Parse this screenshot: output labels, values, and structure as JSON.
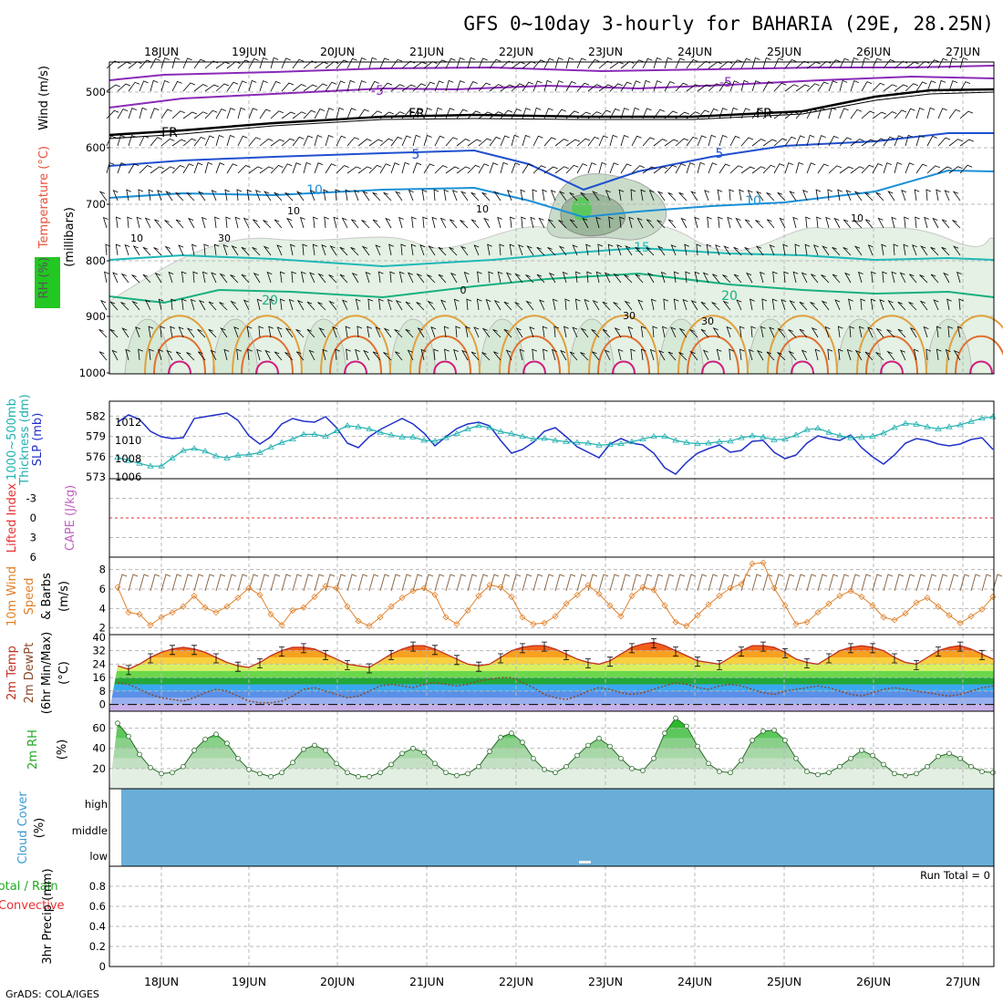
{
  "title": "GFS 0~10day 3-hourly for BAHARIA (29E, 28.25N)",
  "footer": "GrADS: COLA/IGES",
  "days": [
    "18JUN",
    "19JUN",
    "20JUN",
    "21JUN",
    "22JUN",
    "23JUN",
    "24JUN",
    "25JUN",
    "26JUN",
    "27JUN"
  ],
  "panels": {
    "upper": {
      "labels": [
        "Wind (m/s)",
        "Temperature (°C)",
        "RH (%)",
        "(millibars)"
      ],
      "label_colors": [
        "#000000",
        "#e8503a",
        "#22aa22",
        "#000000"
      ],
      "y_ticks": [
        "500",
        "600",
        "700",
        "800",
        "900",
        "1000"
      ]
    },
    "slp": {
      "labels": [
        "1000~500mb",
        "Thickness (dm)",
        "SLP (mb)"
      ],
      "label_colors": [
        "#20b0b0",
        "#20b0b0",
        "#2030c8"
      ],
      "left_ticks": [
        "582",
        "579",
        "576",
        "573"
      ],
      "right_ticks": [
        "1012",
        "1010",
        "1008",
        "1006"
      ]
    },
    "cape": {
      "labels": [
        "Lifted Index",
        "CAPE (J/kg)"
      ],
      "label_colors": [
        "#e83030",
        "#c060c0"
      ],
      "y_ticks": [
        "-3",
        "0",
        "3",
        "6"
      ]
    },
    "wind10m": {
      "labels": [
        "10m Wind",
        "Speed",
        "& Barbs",
        "(m/s)"
      ],
      "label_colors": [
        "#e0802a",
        "#e0802a",
        "#000000",
        "#000000"
      ],
      "y_ticks": [
        "8",
        "6",
        "4",
        "2"
      ]
    },
    "temp2m": {
      "labels": [
        "2m Temp",
        "2m DewPt",
        "(6hr Min/Max)",
        "(°C)"
      ],
      "label_colors": [
        "#c03020",
        "#8a4a2a",
        "#000000",
        "#000000"
      ],
      "y_ticks": [
        "40",
        "32",
        "24",
        "16",
        "8",
        "0"
      ]
    },
    "rh2m": {
      "labels": [
        "2m RH",
        "(%)"
      ],
      "label_colors": [
        "#22aa22",
        "#000000"
      ],
      "y_ticks": [
        "60",
        "40",
        "20"
      ]
    },
    "cloud": {
      "labels": [
        "Cloud Cover",
        "(%)"
      ],
      "label_colors": [
        "#3a9ad0",
        "#000000"
      ],
      "levels": [
        "high",
        "middle",
        "low"
      ],
      "fill_color": "#6aaed8"
    },
    "precip": {
      "labels": [
        "Total / Rain",
        "Convective",
        "3hr Precip (mm)"
      ],
      "label_colors": [
        "#22aa22",
        "#e83030",
        "#000000"
      ],
      "y_ticks": [
        "0.8",
        "0.6",
        "0.4",
        "0.2",
        "0"
      ],
      "run_total": "Run Total = 0"
    }
  },
  "contour_labels": {
    "temperature": [
      "-5",
      "-5",
      "FR",
      "FR",
      "FR",
      "5",
      "5",
      "10",
      "10",
      "15",
      "20",
      "20"
    ],
    "rh": [
      "10",
      "10",
      "10",
      "10",
      "30",
      "30",
      "30",
      "0"
    ]
  },
  "chart_data": [
    {
      "type": "line",
      "title": "SLP (mb) and 1000~500mb Thickness (dm)",
      "x": "3-hourly steps from 17JUN 12Z to 27JUN 06Z (80 steps)",
      "series": [
        {
          "name": "SLP (mb)",
          "color": "#2030c8",
          "values": [
            1010.5,
            1010.4,
            1011.5,
            1011.8,
            1012.0,
            1012.8,
            1012.3,
            1011.0,
            1010.4,
            1010.2,
            1010.3,
            1012.4,
            1012.6,
            1012.8,
            1013.0,
            1012.2,
            1010.5,
            1009.6,
            1010.4,
            1011.8,
            1012.4,
            1012.1,
            1012.0,
            1012.6,
            1011.4,
            1009.7,
            1009.2,
            1010.4,
            1011.2,
            1011.8,
            1012.4,
            1011.8,
            1010.8,
            1009.4,
            1010.4,
            1011.3,
            1011.8,
            1012.0,
            1011.6,
            1010.0,
            1008.6,
            1009.0,
            1009.8,
            1011.0,
            1011.4,
            1010.4,
            1009.3,
            1008.7,
            1008.1,
            1009.6,
            1010.2,
            1009.7,
            1009.5,
            1008.6,
            1007.0,
            1006.3,
            1007.6,
            1008.6,
            1009.1,
            1009.5,
            1008.7,
            1008.9,
            1009.9,
            1010.0,
            1008.7,
            1008.0,
            1008.4,
            1009.7,
            1010.5,
            1010.2,
            1010.0,
            1010.6,
            1009.2,
            1008.2,
            1007.4,
            1008.4,
            1009.7,
            1010.2,
            1010.0,
            1009.6,
            1009.4,
            1009.6,
            1010.1,
            1010.3,
            1009.0,
            1008.0,
            1007.8,
            1008.6,
            1009.6,
            1010.1,
            1010.2,
            1009.7,
            1009.8
          ]
        },
        {
          "name": "1000~500mb Thickness (dm)",
          "color": "#20b0b0",
          "values": [
            576.3,
            576.5,
            576.2,
            575.9,
            575.4,
            575.0,
            574.6,
            574.6,
            575.8,
            576.9,
            577.2,
            576.8,
            576.1,
            575.8,
            576.2,
            576.3,
            576.6,
            577.4,
            578.1,
            578.6,
            579.3,
            579.3,
            579.0,
            579.8,
            580.6,
            580.4,
            580.1,
            579.6,
            579.2,
            578.9,
            578.9,
            578.4,
            578.3,
            578.8,
            579.4,
            580.1,
            580.6,
            580.3,
            579.7,
            579.4,
            579.0,
            578.6,
            578.7,
            578.4,
            578.2,
            578.1,
            578.0,
            577.7,
            577.8,
            577.9,
            578.2,
            578.6,
            579.0,
            579.0,
            578.4,
            578.1,
            577.9,
            578.0,
            578.2,
            578.3,
            578.8,
            579.1,
            578.9,
            578.5,
            578.6,
            579.2,
            580.0,
            580.2,
            579.6,
            579.1,
            578.8,
            578.9,
            579.0,
            579.5,
            580.3,
            580.9,
            580.8,
            580.4,
            580.1,
            580.4,
            580.7,
            581.2,
            581.7,
            581.9,
            581.6,
            581.2,
            580.8,
            580.6,
            580.6,
            580.8,
            580.6,
            580.3
          ]
        }
      ],
      "ylim_left": [
        573,
        583
      ],
      "ylim_right": [
        1005.5,
        1013.5
      ],
      "grid": true
    },
    {
      "type": "line",
      "title": "10m Wind Speed (m/s)",
      "series": [
        {
          "name": "10m Wind Speed",
          "color": "#e0802a",
          "values": [
            6.8,
            7.4,
            6.2,
            3.6,
            3.4,
            2.3,
            3.1,
            3.6,
            4.2,
            5.3,
            4.1,
            3.6,
            4.2,
            5.1,
            6.1,
            5.4,
            3.4,
            2.3,
            3.8,
            4.1,
            5.2,
            6.3,
            6.1,
            4.2,
            2.7,
            2.2,
            3.1,
            4.2,
            5.1,
            5.8,
            6.1,
            5.4,
            3.1,
            2.4,
            3.8,
            5.3,
            6.4,
            6.2,
            5.2,
            3.1,
            2.4,
            2.5,
            3.2,
            4.5,
            5.4,
            6.4,
            5.5,
            4.3,
            3.2,
            5.3,
            6.2,
            5.9,
            4.3,
            2.6,
            2.2,
            3.3,
            4.4,
            5.3,
            6.1,
            6.5,
            8.6,
            8.7,
            6.1,
            4.3,
            2.4,
            2.6,
            3.6,
            4.5,
            5.3,
            5.8,
            5.2,
            4.3,
            3.1,
            2.8,
            3.5,
            4.6,
            5.1,
            4.2,
            3.3,
            2.5,
            3.2,
            3.9,
            5.2,
            5.7,
            5.2,
            4.1,
            2.7,
            2.5,
            3.4,
            4.6,
            5.3,
            4.3,
            3.2,
            2.4,
            2.8,
            4.2
          ]
        }
      ],
      "ylim": [
        2,
        9
      ],
      "grid": true
    },
    {
      "type": "area",
      "title": "2m Temp and 2m DewPt (°C)",
      "series": [
        {
          "name": "2m Temp",
          "color": "#c03020",
          "values": [
            32,
            31,
            29,
            27,
            24,
            23,
            21,
            24,
            28,
            31,
            33,
            34,
            33,
            31,
            28,
            25,
            23,
            22,
            25,
            29,
            32,
            34,
            34,
            33,
            30,
            27,
            24,
            23,
            22,
            26,
            30,
            33,
            35,
            35,
            33,
            30,
            27,
            24,
            23,
            24,
            28,
            32,
            34,
            35,
            35,
            33,
            30,
            27,
            25,
            24,
            26,
            30,
            34,
            36,
            37,
            35,
            32,
            29,
            26,
            25,
            24,
            28,
            32,
            35,
            35,
            34,
            31,
            27,
            25,
            24,
            28,
            32,
            34,
            35,
            34,
            32,
            28,
            25,
            24,
            28,
            32,
            34,
            35,
            33,
            30,
            27,
            25,
            24,
            28,
            32,
            34,
            34,
            32,
            29,
            26,
            25
          ]
        },
        {
          "name": "2m DewPt",
          "color": "#8a4a2a",
          "values": [
            2,
            3,
            4,
            6,
            10,
            13,
            12,
            9,
            6,
            4,
            3,
            2,
            4,
            7,
            9,
            8,
            5,
            2,
            1,
            1,
            2,
            5,
            9,
            10,
            8,
            6,
            4,
            5,
            8,
            11,
            12,
            11,
            10,
            12,
            13,
            12,
            11,
            12,
            14,
            15,
            16,
            16,
            13,
            10,
            6,
            4,
            3,
            5,
            8,
            10,
            9,
            7,
            6,
            7,
            9,
            11,
            13,
            12,
            10,
            9,
            11,
            12,
            11,
            9,
            7,
            6,
            8,
            9,
            10,
            11,
            10,
            8,
            6,
            5,
            7,
            9,
            10,
            9,
            8,
            7,
            6,
            5,
            6,
            8,
            10,
            11,
            12,
            11,
            10,
            9,
            10,
            11
          ]
        }
      ],
      "ylim": [
        -4,
        41
      ],
      "grid": true
    },
    {
      "type": "area",
      "title": "2m RH (%)",
      "series": [
        {
          "name": "2m RH",
          "color": "#22aa22",
          "values": [
            14,
            15,
            20,
            35,
            57,
            65,
            52,
            34,
            21,
            15,
            16,
            22,
            38,
            49,
            54,
            45,
            30,
            19,
            15,
            12,
            16,
            26,
            39,
            43,
            38,
            25,
            16,
            12,
            12,
            16,
            24,
            35,
            40,
            36,
            25,
            16,
            13,
            15,
            22,
            37,
            51,
            55,
            46,
            30,
            19,
            16,
            22,
            33,
            43,
            50,
            42,
            30,
            20,
            18,
            30,
            55,
            70,
            62,
            42,
            25,
            17,
            16,
            28,
            48,
            57,
            58,
            48,
            30,
            17,
            14,
            16,
            22,
            30,
            38,
            33,
            24,
            15,
            13,
            15,
            22,
            32,
            35,
            30,
            22,
            17,
            16,
            15,
            23,
            38,
            42,
            38
          ]
        }
      ],
      "ylim": [
        0,
        75
      ],
      "grid": true
    },
    {
      "type": "line",
      "title": "3hr Precip (mm)",
      "series": [
        {
          "name": "Total / Rain",
          "color": "#22aa22",
          "values": [
            0
          ]
        },
        {
          "name": "Convective",
          "color": "#e83030",
          "values": [
            0
          ]
        }
      ],
      "ylim": [
        0,
        1
      ],
      "grid": true
    }
  ]
}
